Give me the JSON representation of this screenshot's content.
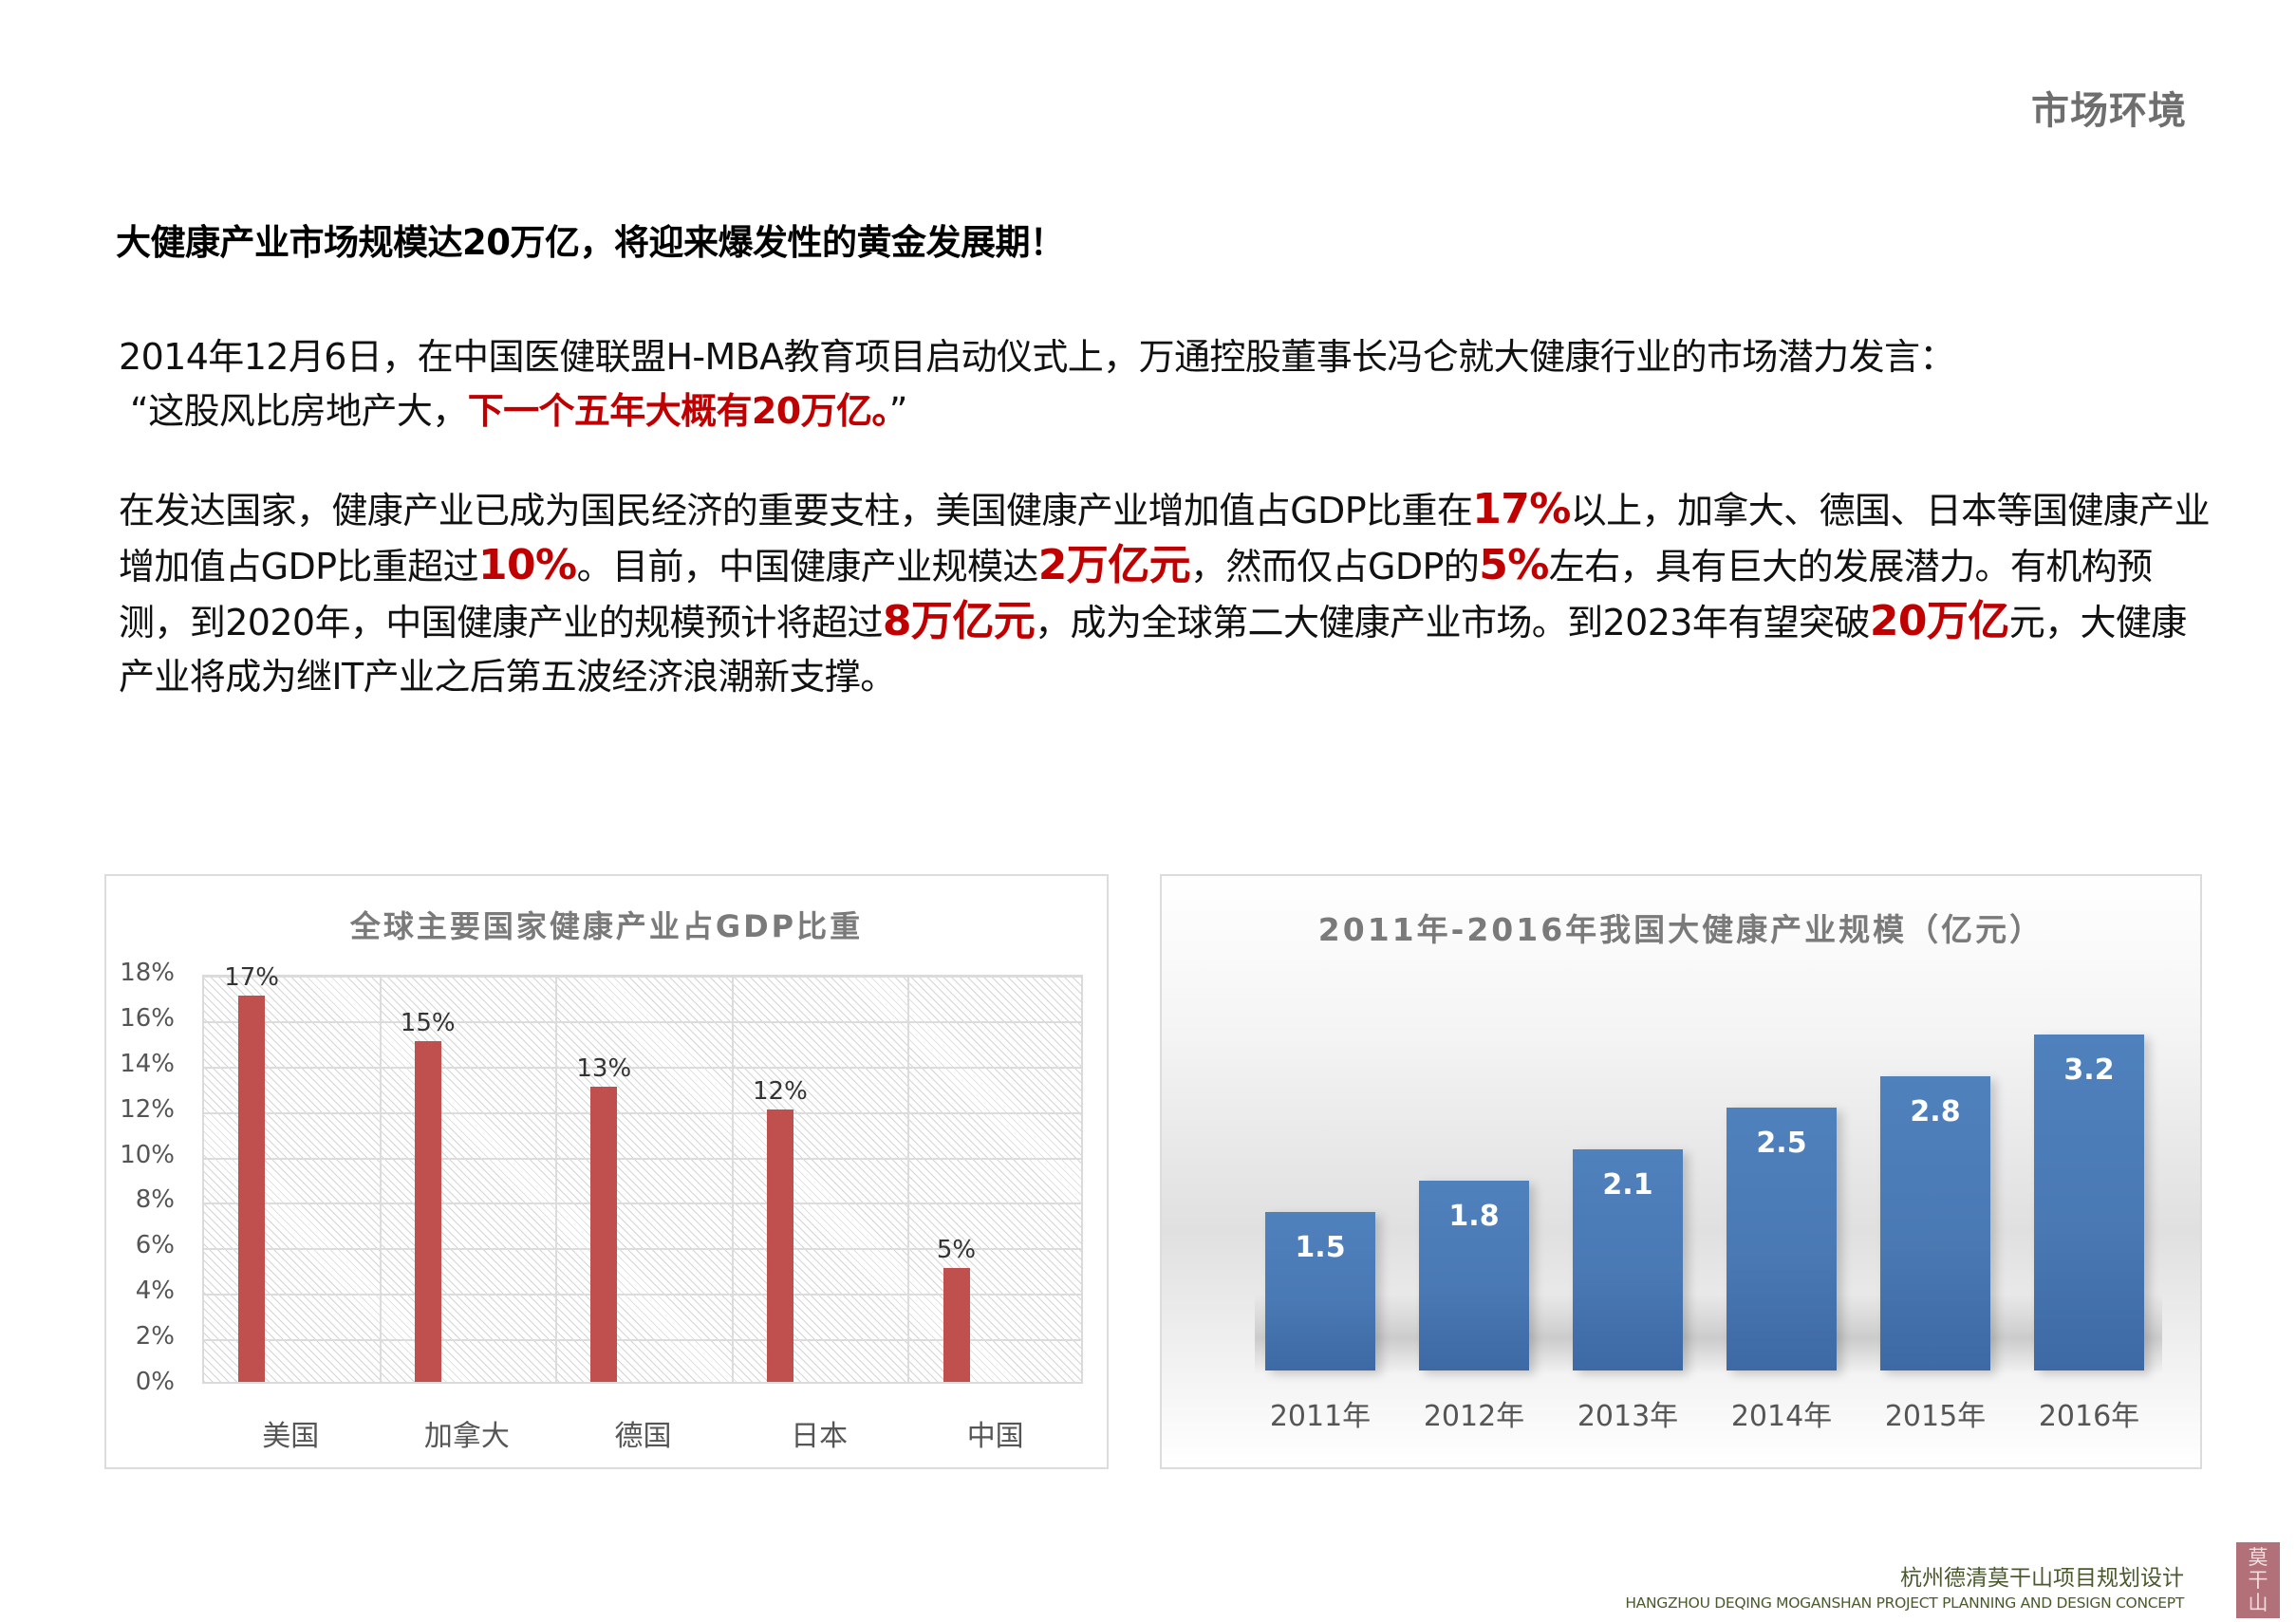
{
  "header": {
    "section_label": "市场环境"
  },
  "headline": "大健康产业市场规模达20万亿，将迎来爆发性的黄金发展期！",
  "paragraph1": {
    "line1": "2014年12月6日，在中国医健联盟H-MBA教育项目启动仪式上，万通控股董事长冯仑就大健康行业的市场潜力发言：",
    "quote_open": "“这股风比房地产大，",
    "quote_highlight": "下一个五年大概有20万亿。",
    "quote_close": "”"
  },
  "paragraph2": {
    "seg1": "在发达国家，健康产业已成为国民经济的重要支柱，美国健康产业增加值占GDP比重在",
    "hl1": "17%",
    "seg2": "以上，加拿大、德国、日本等国健康产业增加值占GDP比重超过",
    "hl2": "10%",
    "seg3": "。目前，中国健康产业规模达",
    "hl3": "2万亿元",
    "seg4": "，然而仅占GDP的",
    "hl4": "5%",
    "seg5": "左右，具有巨大的发展潜力。有机构预测，到2020年，中国健康产业的规模预计将超过",
    "hl5": "8万亿元",
    "seg6": "，成为全球第二大健康产业市场。到2023年有望突破",
    "hl6": "20万亿",
    "seg7": "元，大健康产业将成为继IT产业之后第五波经济浪潮新支撑。"
  },
  "chart_data": [
    {
      "type": "bar",
      "title": "全球主要国家健康产业占GDP比重",
      "categories": [
        "美国",
        "加拿大",
        "德国",
        "日本",
        "中国"
      ],
      "values": [
        17,
        15,
        13,
        12,
        5
      ],
      "value_labels": [
        "17%",
        "15%",
        "13%",
        "12%",
        "5%"
      ],
      "xlabel": "",
      "ylabel": "",
      "ylim": [
        0,
        18
      ],
      "yticks": [
        "0%",
        "2%",
        "4%",
        "6%",
        "8%",
        "10%",
        "12%",
        "14%",
        "16%",
        "18%"
      ],
      "grid": true,
      "legend": "none",
      "bar_color": "#c0504d"
    },
    {
      "type": "bar",
      "title": "2011年-2016年我国大健康产业规模（亿元）",
      "categories": [
        "2011年",
        "2012年",
        "2013年",
        "2014年",
        "2015年",
        "2016年"
      ],
      "values": [
        1.5,
        1.8,
        2.1,
        2.5,
        2.8,
        3.2
      ],
      "value_labels": [
        "1.5",
        "1.8",
        "2.1",
        "2.5",
        "2.8",
        "3.2"
      ],
      "xlabel": "",
      "ylabel": "",
      "grid": false,
      "legend": "none",
      "bar_color": "#4f81bd"
    }
  ],
  "footer": {
    "project_cn": "杭州德清莫干山项目规划设计",
    "project_en": "HANGZHOU DEQING MOGANSHAN PROJECT PLANNING AND DESIGN CONCEPT",
    "logo_chars": [
      "莫",
      "干",
      "山"
    ]
  },
  "colors": {
    "highlight_red": "#c00000",
    "chart1_bar": "#c0504d",
    "chart2_bar": "#4f81bd",
    "logo_bg": "#b27078"
  }
}
